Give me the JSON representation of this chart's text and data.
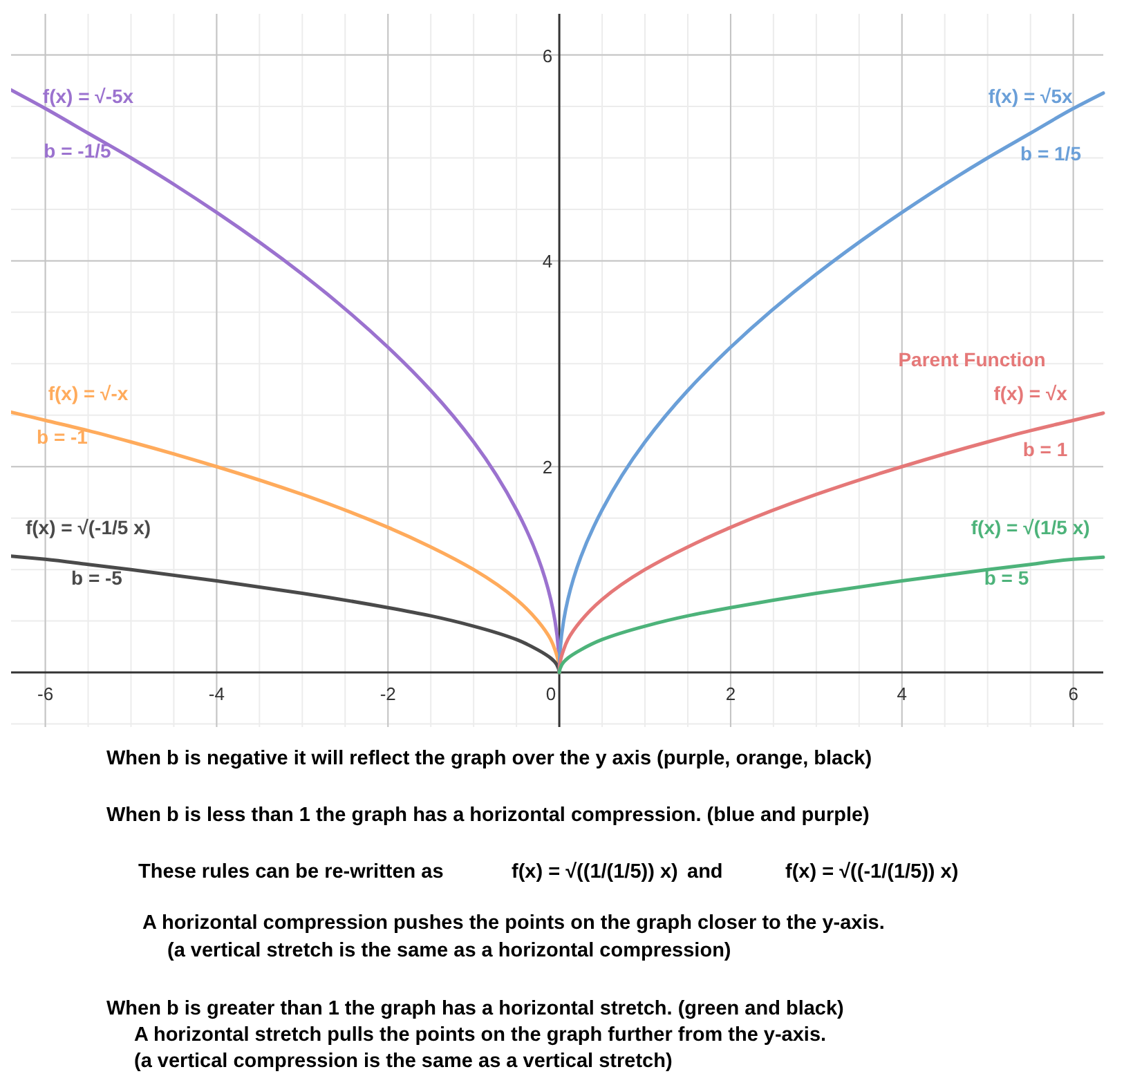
{
  "chart_data": {
    "type": "line",
    "xlim": [
      -6.4,
      6.35
    ],
    "ylim": [
      -0.53,
      6.4
    ],
    "xticks": [
      -6,
      -4,
      -2,
      0,
      2,
      4,
      6
    ],
    "yticks": [
      2,
      4,
      6
    ],
    "grid": true,
    "series": [
      {
        "name": "f(x) = √-5x",
        "color": "#9b72cf",
        "x": [
          0,
          -0.01,
          -0.05,
          -0.1,
          -0.25,
          -0.5,
          -1,
          -1.5,
          -2,
          -3,
          -4,
          -5,
          -5.5,
          -6,
          -6.4
        ],
        "values": [
          0,
          0.22,
          0.5,
          0.71,
          1.12,
          1.58,
          2.24,
          2.74,
          3.16,
          3.87,
          4.47,
          5,
          5.24,
          5.48,
          5.66
        ]
      },
      {
        "name": "f(x) = √-x",
        "color": "#ffab5c",
        "x": [
          0,
          -0.01,
          -0.05,
          -0.1,
          -0.25,
          -0.5,
          -1,
          -1.5,
          -2,
          -3,
          -4,
          -5,
          -5.5,
          -6,
          -6.4
        ],
        "values": [
          0,
          0.1,
          0.22,
          0.32,
          0.5,
          0.71,
          1,
          1.22,
          1.41,
          1.73,
          2,
          2.24,
          2.35,
          2.45,
          2.53
        ]
      },
      {
        "name": "f(x) = √(-1/5 x)",
        "color": "#4a4a4a",
        "x": [
          0,
          -0.01,
          -0.05,
          -0.1,
          -0.25,
          -0.5,
          -1,
          -1.5,
          -2,
          -3,
          -4,
          -5,
          -5.5,
          -6,
          -6.4
        ],
        "values": [
          0,
          0.04,
          0.1,
          0.14,
          0.22,
          0.32,
          0.45,
          0.55,
          0.63,
          0.77,
          0.89,
          1,
          1.05,
          1.1,
          1.13
        ]
      },
      {
        "name": "f(x) = √5x",
        "color": "#6a9fd8",
        "x": [
          0,
          0.01,
          0.05,
          0.1,
          0.25,
          0.5,
          1,
          1.5,
          2,
          3,
          4,
          5,
          5.5,
          6,
          6.35
        ],
        "values": [
          0,
          0.22,
          0.5,
          0.71,
          1.12,
          1.58,
          2.24,
          2.74,
          3.16,
          3.87,
          4.47,
          5,
          5.24,
          5.48,
          5.63
        ]
      },
      {
        "name": "f(x) = √x",
        "color": "#e57878",
        "x": [
          0,
          0.01,
          0.05,
          0.1,
          0.25,
          0.5,
          1,
          1.5,
          2,
          3,
          4,
          5,
          5.5,
          6,
          6.35
        ],
        "values": [
          0,
          0.1,
          0.22,
          0.32,
          0.5,
          0.71,
          1,
          1.22,
          1.41,
          1.73,
          2,
          2.24,
          2.35,
          2.45,
          2.52
        ]
      },
      {
        "name": "f(x) = √(1/5 x)",
        "color": "#4db37a",
        "x": [
          0,
          0.01,
          0.05,
          0.1,
          0.25,
          0.5,
          1,
          1.5,
          2,
          3,
          4,
          5,
          5.5,
          6,
          6.35
        ],
        "values": [
          0,
          0.04,
          0.1,
          0.14,
          0.22,
          0.32,
          0.45,
          0.55,
          0.63,
          0.77,
          0.89,
          1,
          1.05,
          1.1,
          1.12
        ]
      }
    ],
    "annotations": [
      "b = -1/5",
      "b = 1/5",
      "b = -1",
      "Parent Function",
      "b = 1",
      "b = -5",
      "b = 5",
      "When b is negative it will reflect the graph over the y axis (purple, orange, black)",
      "When b is less than 1 the graph has a horizontal compression.  (blue and purple)",
      "These rules can be re-written as",
      "f(x) = √((1/(1/5)) x)",
      "and",
      "f(x) = √((-1/(1/5)) x)",
      "A horizontal compression pushes the points on the graph closer to the y-axis.",
      "(a vertical stretch is the same as a horizontal compression)",
      "When b is greater than 1 the graph has a horizontal stretch.  (green and black)",
      "A horizontal stretch pulls the points on the graph further from the y-axis.",
      "(a vertical compression is the same as a vertical stretch)"
    ]
  }
}
